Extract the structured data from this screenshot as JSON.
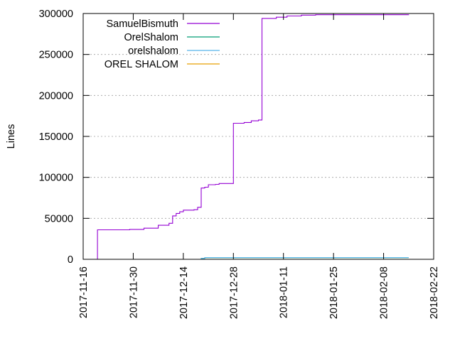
{
  "chart_data": {
    "type": "line",
    "title": "",
    "xlabel": "",
    "ylabel": "Lines",
    "xlim": [
      "2017-11-16",
      "2018-02-22"
    ],
    "ylim": [
      0,
      300000
    ],
    "x_ticks": [
      "2017-11-16",
      "2017-11-30",
      "2017-12-14",
      "2017-12-28",
      "2018-01-11",
      "2018-01-25",
      "2018-02-08",
      "2018-02-22"
    ],
    "y_ticks": [
      0,
      50000,
      100000,
      150000,
      200000,
      250000,
      300000
    ],
    "y_tick_labels": [
      "0",
      "50000",
      "100000",
      "150000",
      "200000",
      "250000",
      "300000"
    ],
    "grid": "horizontal dotted",
    "legend_position": "top-left",
    "series": [
      {
        "name": "SamuelBismuth",
        "color": "#9400d3",
        "step": true,
        "points": [
          [
            "2017-11-20",
            0
          ],
          [
            "2017-11-20",
            36000
          ],
          [
            "2017-11-29",
            36500
          ],
          [
            "2017-12-03",
            38000
          ],
          [
            "2017-12-07",
            41500
          ],
          [
            "2017-12-10",
            44000
          ],
          [
            "2017-12-11",
            53000
          ],
          [
            "2017-12-12",
            56000
          ],
          [
            "2017-12-13",
            58000
          ],
          [
            "2017-12-14",
            60000
          ],
          [
            "2017-12-17",
            60500
          ],
          [
            "2017-12-18",
            63500
          ],
          [
            "2017-12-19",
            87000
          ],
          [
            "2017-12-20",
            88000
          ],
          [
            "2017-12-21",
            91000
          ],
          [
            "2017-12-23",
            91500
          ],
          [
            "2017-12-24",
            92500
          ],
          [
            "2017-12-28",
            166000
          ],
          [
            "2017-12-31",
            167000
          ],
          [
            "2018-01-02",
            169000
          ],
          [
            "2018-01-04",
            170000
          ],
          [
            "2018-01-05",
            294000
          ],
          [
            "2018-01-09",
            295500
          ],
          [
            "2018-01-12",
            297000
          ],
          [
            "2018-01-16",
            298000
          ],
          [
            "2018-01-20",
            298500
          ],
          [
            "2018-02-15",
            299000
          ]
        ]
      },
      {
        "name": "OrelShalom",
        "color": "#009e73",
        "step": true,
        "points": [
          [
            "2017-12-17",
            0
          ],
          [
            "2017-12-19",
            1000
          ],
          [
            "2017-12-20",
            2000
          ],
          [
            "2018-02-15",
            2000
          ]
        ]
      },
      {
        "name": "orelshalom",
        "color": "#56b4e9",
        "step": true,
        "points": [
          [
            "2017-12-17",
            0
          ],
          [
            "2017-12-19",
            1000
          ],
          [
            "2017-12-20",
            2200
          ],
          [
            "2018-02-15",
            2200
          ]
        ]
      },
      {
        "name": "OREL SHALOM",
        "color": "#e69f00",
        "step": true,
        "points": [
          [
            "2017-12-19",
            0
          ],
          [
            "2018-02-15",
            0
          ]
        ]
      }
    ]
  }
}
